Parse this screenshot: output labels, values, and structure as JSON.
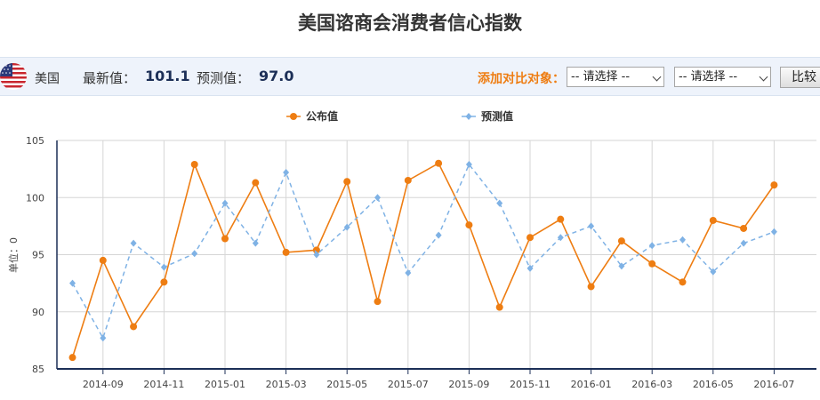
{
  "page": {
    "title": "美国谘商会消费者信心指数"
  },
  "toolbar": {
    "flag_icon": "us-flag-icon",
    "country": "美国",
    "latest_label": "最新值：",
    "latest_value": "101.1",
    "forecast_label": "预测值：",
    "forecast_value": "97.0",
    "compare_label": "添加对比对象：",
    "select1_value": "-- 请选择 --",
    "select2_value": "-- 请选择 --",
    "compare_button": "比较",
    "compare_label_color": "#ee7d12"
  },
  "chart_data": {
    "type": "line",
    "ylabel": "单位：0",
    "ylim": [
      85,
      105
    ],
    "yticks": [
      85,
      90,
      95,
      100,
      105
    ],
    "x": [
      "2014-08",
      "2014-09",
      "2014-10",
      "2014-11",
      "2014-12",
      "2015-01",
      "2015-02",
      "2015-03",
      "2015-04",
      "2015-05",
      "2015-06",
      "2015-07",
      "2015-08",
      "2015-09",
      "2015-10",
      "2015-11",
      "2015-12",
      "2016-01",
      "2016-02",
      "2016-03",
      "2016-04",
      "2016-05",
      "2016-06",
      "2016-07"
    ],
    "xtick_labels": [
      "2014-09",
      "2014-11",
      "2015-01",
      "2015-03",
      "2015-05",
      "2015-07",
      "2015-09",
      "2015-11",
      "2016-01",
      "2016-03",
      "2016-05",
      "2016-07"
    ],
    "series": [
      {
        "name": "公布值",
        "color": "#ee7d12",
        "style": "solid",
        "marker": "circle",
        "values": [
          86.0,
          94.5,
          88.7,
          92.6,
          102.9,
          96.4,
          101.3,
          95.2,
          95.4,
          101.4,
          90.9,
          101.5,
          103.0,
          97.6,
          90.4,
          96.5,
          98.1,
          92.2,
          96.2,
          94.2,
          92.6,
          98.0,
          97.3,
          101.1
        ]
      },
      {
        "name": "预测值",
        "color": "#7fb2e5",
        "style": "dashed",
        "marker": "diamond",
        "values": [
          92.5,
          87.7,
          96.0,
          93.9,
          95.1,
          99.5,
          96.0,
          102.2,
          95.0,
          97.4,
          100.0,
          93.4,
          96.7,
          102.9,
          99.5,
          93.8,
          96.5,
          97.5,
          94.0,
          95.8,
          96.3,
          93.5,
          96.0,
          97.0
        ]
      }
    ],
    "grid": true,
    "legend": "top-center"
  }
}
